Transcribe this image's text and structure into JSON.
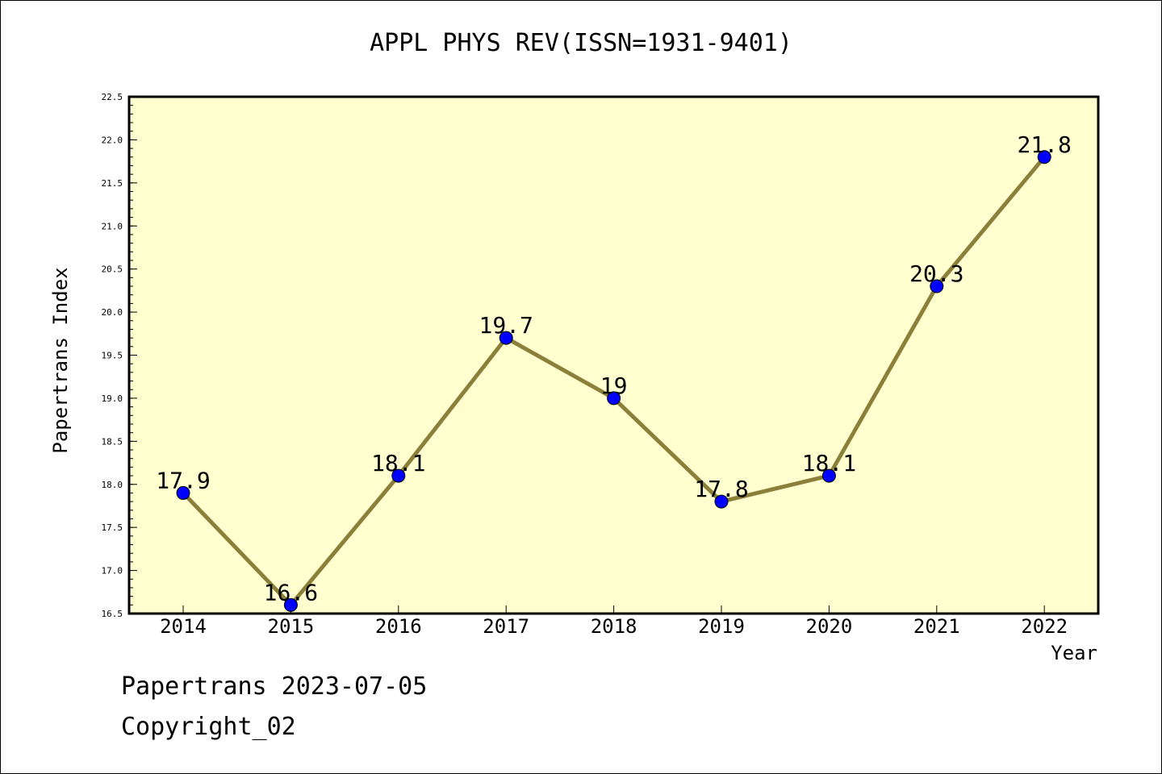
{
  "title": "APPL PHYS REV(ISSN=1931-9401)",
  "footer": {
    "line1": "Papertrans 2023-07-05",
    "line2": "Copyright_02"
  },
  "colors": {
    "plot_background": "#ffffd0",
    "line": "#8b7f3a",
    "marker": "#0000ff"
  },
  "chart_data": {
    "type": "line",
    "title": "APPL PHYS REV(ISSN=1931-9401)",
    "xlabel": "Year",
    "ylabel": "Papertrans Index",
    "categories": [
      "2014",
      "2015",
      "2016",
      "2017",
      "2018",
      "2019",
      "2020",
      "2021",
      "2022"
    ],
    "series": [
      {
        "values": [
          17.9,
          16.6,
          18.1,
          19.7,
          19.0,
          17.8,
          18.1,
          20.3,
          21.8
        ],
        "labels": [
          "17.9",
          "16.6",
          "18.1",
          "19.7",
          "19",
          "17.8",
          "18.1",
          "20.3",
          "21.8"
        ]
      }
    ],
    "ylim": [
      16.5,
      22.5
    ],
    "yticks": [
      "16.5",
      "17.0",
      "17.5",
      "18.0",
      "18.5",
      "19.0",
      "19.5",
      "20.0",
      "20.5",
      "21.0",
      "21.5",
      "22.0",
      "22.5"
    ],
    "grid": false,
    "legend": "none"
  }
}
